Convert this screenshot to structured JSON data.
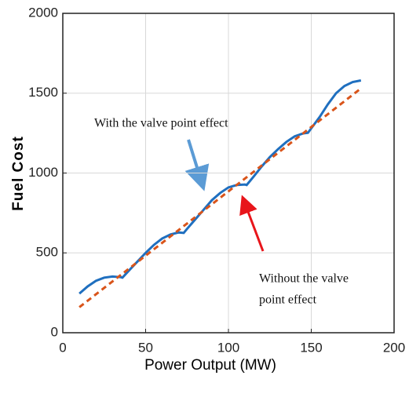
{
  "chart_data": {
    "type": "line",
    "xlabel": "Power Output (MW)",
    "ylabel": "Fuel Cost",
    "xlim": [
      0,
      200
    ],
    "xticks": [
      0,
      50,
      100,
      150,
      200
    ],
    "ylim": [
      0,
      2000
    ],
    "yticks": [
      0,
      500,
      1000,
      1500,
      2000
    ],
    "grid": true,
    "series": [
      {
        "name": "With the valve point effect",
        "color": "#1f6fbf",
        "style": "solid",
        "x": [
          10,
          15,
          20,
          25,
          30,
          35,
          36,
          40,
          45,
          50,
          55,
          60,
          65,
          70,
          73,
          75,
          80,
          85,
          90,
          95,
          100,
          105,
          110,
          111,
          115,
          120,
          125,
          130,
          135,
          140,
          145,
          148,
          150,
          155,
          160,
          165,
          170,
          175,
          180
        ],
        "values": [
          245,
          290,
          325,
          345,
          352,
          348,
          345,
          390,
          445,
          500,
          550,
          590,
          615,
          628,
          625,
          650,
          710,
          770,
          830,
          875,
          910,
          925,
          928,
          925,
          975,
          1040,
          1100,
          1150,
          1195,
          1230,
          1248,
          1252,
          1280,
          1350,
          1430,
          1500,
          1545,
          1570,
          1580
        ]
      },
      {
        "name": "Without the valve point effect",
        "color": "#d9541a",
        "style": "dashed",
        "x": [
          10,
          180
        ],
        "values": [
          160,
          1530
        ]
      }
    ],
    "annotations": [
      {
        "lines": [
          "With the valve point effect"
        ]
      },
      {
        "lines": [
          "Without the valve",
          "point effect"
        ]
      }
    ]
  }
}
